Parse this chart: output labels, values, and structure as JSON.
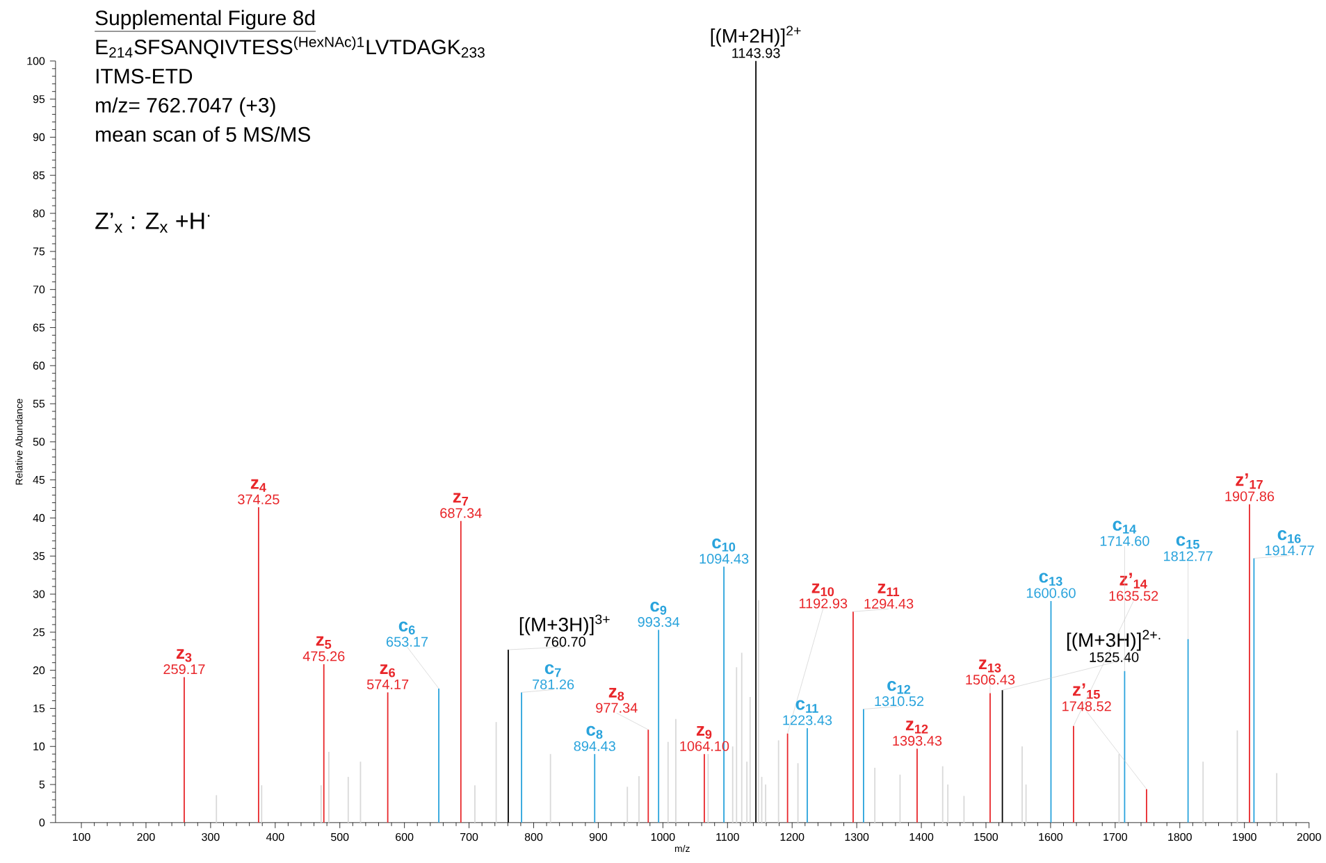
{
  "chart_data": {
    "type": "bar",
    "title": "Supplemental Figure 8d",
    "subtitle": "E$_{214}$SFSANQIVTESS$^{(HexNAc)1}$LVTDAGK$_{233}$",
    "xlabel": "m/z",
    "ylabel": "Relative Abundance",
    "xlim": [
      60,
      2000
    ],
    "ylim": [
      0,
      100
    ],
    "xticks": [
      100,
      200,
      300,
      400,
      500,
      600,
      700,
      800,
      900,
      1000,
      1100,
      1200,
      1300,
      1400,
      1500,
      1600,
      1700,
      1800,
      1900,
      2000
    ],
    "yticks": [
      0,
      5,
      10,
      15,
      20,
      25,
      30,
      35,
      40,
      45,
      50,
      55,
      60,
      65,
      70,
      75,
      80,
      85,
      90,
      95,
      100
    ],
    "series": [
      {
        "color": "#e8262a",
        "x": [
          259.17,
          374.25,
          475.26,
          574.17,
          687.34,
          977.34,
          1064.1,
          1192.93,
          1294.43,
          1393.43,
          1506.43,
          1635.52,
          1748.52,
          1907.86
        ],
        "values": [
          19.1,
          41.4,
          20.8,
          17.1,
          39.6,
          12.2,
          9,
          11.7,
          27.7,
          9.7,
          17,
          12.7,
          4.4,
          41.8
        ]
      },
      {
        "color": "#29a3dc",
        "x": [
          653.17,
          781.26,
          894.43,
          993.34,
          1094.43,
          1223.43,
          1310.52,
          1600.6,
          1714.6,
          1812.77,
          1914.77
        ],
        "values": [
          17.6,
          17.1,
          9,
          25.3,
          33.6,
          12.4,
          14.9,
          29.1,
          19.9,
          24.1,
          34.7
        ]
      },
      {
        "color": "#000000",
        "x": [
          760.7,
          1143.93,
          1525.4
        ],
        "values": [
          22.7,
          100,
          17.4
        ]
      },
      {
        "color": "#d9d9d9",
        "x": [
          309,
          379,
          471,
          483,
          513,
          532,
          709,
          742,
          826,
          945,
          963,
          1008,
          1020,
          1070,
          1108,
          1114,
          1122,
          1130,
          1135,
          1148,
          1153,
          1159,
          1179,
          1209,
          1328,
          1367,
          1433,
          1441,
          1466,
          1556,
          1562,
          1706,
          1836,
          1889,
          1950
        ],
        "values": [
          3.6,
          4.9,
          4.9,
          9.3,
          6,
          8,
          4.9,
          13.2,
          9,
          4.7,
          6.1,
          10.6,
          13.6,
          9,
          10,
          20.4,
          22.3,
          8,
          16.5,
          29.2,
          6,
          5,
          10.8,
          7.8,
          7.2,
          6.3,
          7.4,
          5,
          3.5,
          10,
          5,
          9,
          8,
          12.1,
          6.5
        ]
      }
    ],
    "annotations": [
      "ITMS-ETD",
      "m/z= 762.7047 (+3)",
      "mean scan of 5 MS/MS",
      "Z’$_{x}$ : Z$_{x}$ +H$^{·}$",
      {
        "text": "z$_{3}$",
        "x": 259.17,
        "y": 19.1
      },
      {
        "text": "259.17",
        "x": 259.17,
        "y": 19.1
      },
      {
        "text": "z$_{4}$",
        "x": 374.25,
        "y": 41.4
      },
      {
        "text": "374.25",
        "x": 374.25,
        "y": 41.4
      },
      {
        "text": "z$_{5}$",
        "x": 475.26,
        "y": 20.8
      },
      {
        "text": "475.26",
        "x": 475.26,
        "y": 20.8
      },
      {
        "text": "z$_{6}$",
        "x": 574.17,
        "y": 17.1
      },
      {
        "text": "574.17",
        "x": 574.17,
        "y": 17.1
      },
      {
        "text": "c$_{6}$",
        "x": 653.17,
        "y": 17.6
      },
      {
        "text": "653.17",
        "x": 653.17,
        "y": 17.6
      },
      {
        "text": "z$_{7}$",
        "x": 687.34,
        "y": 39.6
      },
      {
        "text": "687.34",
        "x": 687.34,
        "y": 39.6
      },
      {
        "text": "[(M+3H)]$^{3+}$",
        "x": 760.7,
        "y": 22.7
      },
      {
        "text": "760.70",
        "x": 760.7,
        "y": 22.7
      },
      {
        "text": "c$_{7}$",
        "x": 781.26,
        "y": 17.1
      },
      {
        "text": "781.26",
        "x": 781.26,
        "y": 17.1
      },
      {
        "text": "c$_{8}$",
        "x": 894.43,
        "y": 9
      },
      {
        "text": "894.43",
        "x": 894.43,
        "y": 9
      },
      {
        "text": "z$_{8}$",
        "x": 977.34,
        "y": 12.2
      },
      {
        "text": "977.34",
        "x": 977.34,
        "y": 12.2
      },
      {
        "text": "c$_{9}$",
        "x": 993.34,
        "y": 25.3
      },
      {
        "text": "993.34",
        "x": 993.34,
        "y": 25.3
      },
      {
        "text": "z$_{9}$",
        "x": 1064.1,
        "y": 9
      },
      {
        "text": "1064.10",
        "x": 1064.1,
        "y": 9
      },
      {
        "text": "c$_{10}$",
        "x": 1094.43,
        "y": 33.6
      },
      {
        "text": "1094.43",
        "x": 1094.43,
        "y": 33.6
      },
      {
        "text": "[(M+2H)]$^{2+}$",
        "x": 1143.93,
        "y": 100
      },
      {
        "text": "1143.93",
        "x": 1143.93,
        "y": 100
      },
      {
        "text": "z$_{10}$",
        "x": 1192.93,
        "y": 11.7
      },
      {
        "text": "1192.93",
        "x": 1192.93,
        "y": 11.7
      },
      {
        "text": "c$_{11}$",
        "x": 1223.43,
        "y": 12.4
      },
      {
        "text": "1223.43",
        "x": 1223.43,
        "y": 12.4
      },
      {
        "text": "z$_{11}$",
        "x": 1294.43,
        "y": 27.7
      },
      {
        "text": "1294.43",
        "x": 1294.43,
        "y": 27.7
      },
      {
        "text": "c$_{12}$",
        "x": 1310.52,
        "y": 14.9
      },
      {
        "text": "1310.52",
        "x": 1310.52,
        "y": 14.9
      },
      {
        "text": "z$_{12}$",
        "x": 1393.43,
        "y": 9.7
      },
      {
        "text": "1393.43",
        "x": 1393.43,
        "y": 9.7
      },
      {
        "text": "z$_{13}$",
        "x": 1506.43,
        "y": 17
      },
      {
        "text": "1506.43",
        "x": 1506.43,
        "y": 17
      },
      {
        "text": "[(M+3H)]$^{2+.}$",
        "x": 1525.4,
        "y": 17.4
      },
      {
        "text": "1525.40",
        "x": 1525.4,
        "y": 17.4
      },
      {
        "text": "c$_{13}$",
        "x": 1600.6,
        "y": 29.1
      },
      {
        "text": "1600.60",
        "x": 1600.6,
        "y": 29.1
      },
      {
        "text": "z’$_{14}$",
        "x": 1635.52,
        "y": 12.7
      },
      {
        "text": "1635.52",
        "x": 1635.52,
        "y": 12.7
      },
      {
        "text": "c$_{14}$",
        "x": 1714.6,
        "y": 19.9
      },
      {
        "text": "1714.60",
        "x": 1714.6,
        "y": 19.9
      },
      {
        "text": "z’$_{15}$",
        "x": 1748.52,
        "y": 4.4
      },
      {
        "text": "1748.52",
        "x": 1748.52,
        "y": 4.4
      },
      {
        "text": "c$_{15}$",
        "x": 1812.77,
        "y": 24.1
      },
      {
        "text": "1812.77",
        "x": 1812.77,
        "y": 24.1
      },
      {
        "text": "z’$_{17}$",
        "x": 1907.86,
        "y": 41.8
      },
      {
        "text": "1907.86",
        "x": 1907.86,
        "y": 41.8
      },
      {
        "text": "c$_{16}$",
        "x": 1914.77,
        "y": 34.7
      },
      {
        "text": "1914.77",
        "x": 1914.77,
        "y": 34.7
      }
    ]
  }
}
